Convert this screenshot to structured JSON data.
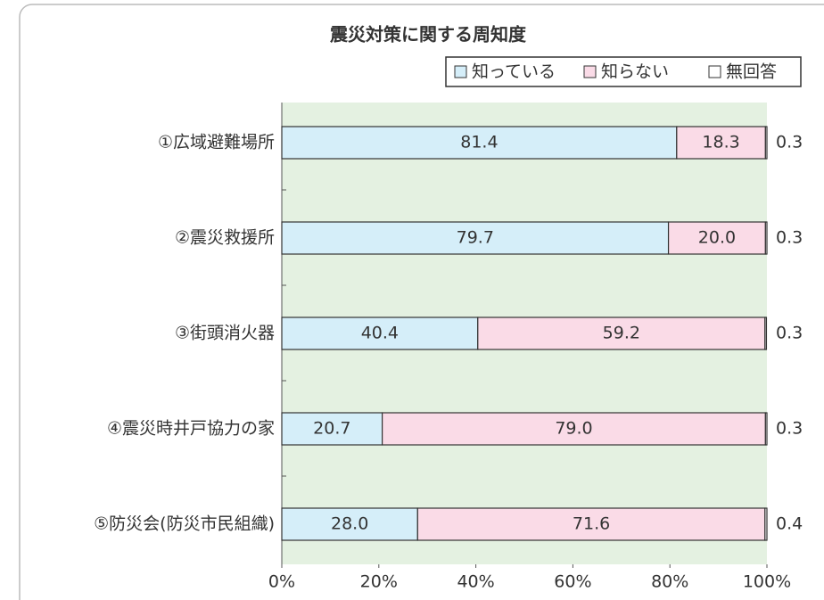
{
  "chart_data": {
    "type": "stacked_barh",
    "title": "震災対策に関する周知度",
    "categories": [
      "①広域避難場所",
      "②震災救援所",
      "③街頭消火器",
      "④震災時井戸協力の家",
      "⑤防災会(防災市民組織)"
    ],
    "series": [
      {
        "name": "知っている",
        "color": "#d5eef9",
        "values": [
          81.4,
          79.7,
          40.4,
          20.7,
          28.0
        ],
        "value_labels": [
          "81.4",
          "79.7",
          "40.4",
          "20.7",
          "28.0"
        ]
      },
      {
        "name": "知らない",
        "color": "#fadbe7",
        "values": [
          18.3,
          20.0,
          59.2,
          79.0,
          71.6
        ],
        "value_labels": [
          "18.3",
          "20.0",
          "59.2",
          "79.0",
          "71.6"
        ]
      },
      {
        "name": "無回答",
        "color": "#ffffff",
        "values": [
          0.3,
          0.3,
          0.3,
          0.3,
          0.4
        ],
        "value_labels": [
          "0.3",
          "0.3",
          "0.3",
          "0.3",
          "0.4"
        ]
      }
    ],
    "xlim": [
      0,
      100
    ],
    "xticks": [
      {
        "value": 0,
        "label": "0%"
      },
      {
        "value": 20,
        "label": "20%"
      },
      {
        "value": 40,
        "label": "40%"
      },
      {
        "value": 60,
        "label": "60%"
      },
      {
        "value": 80,
        "label": "80%"
      },
      {
        "value": 100,
        "label": "100%"
      }
    ],
    "plot_background": "#e4f1e1",
    "legend": "top-right"
  }
}
